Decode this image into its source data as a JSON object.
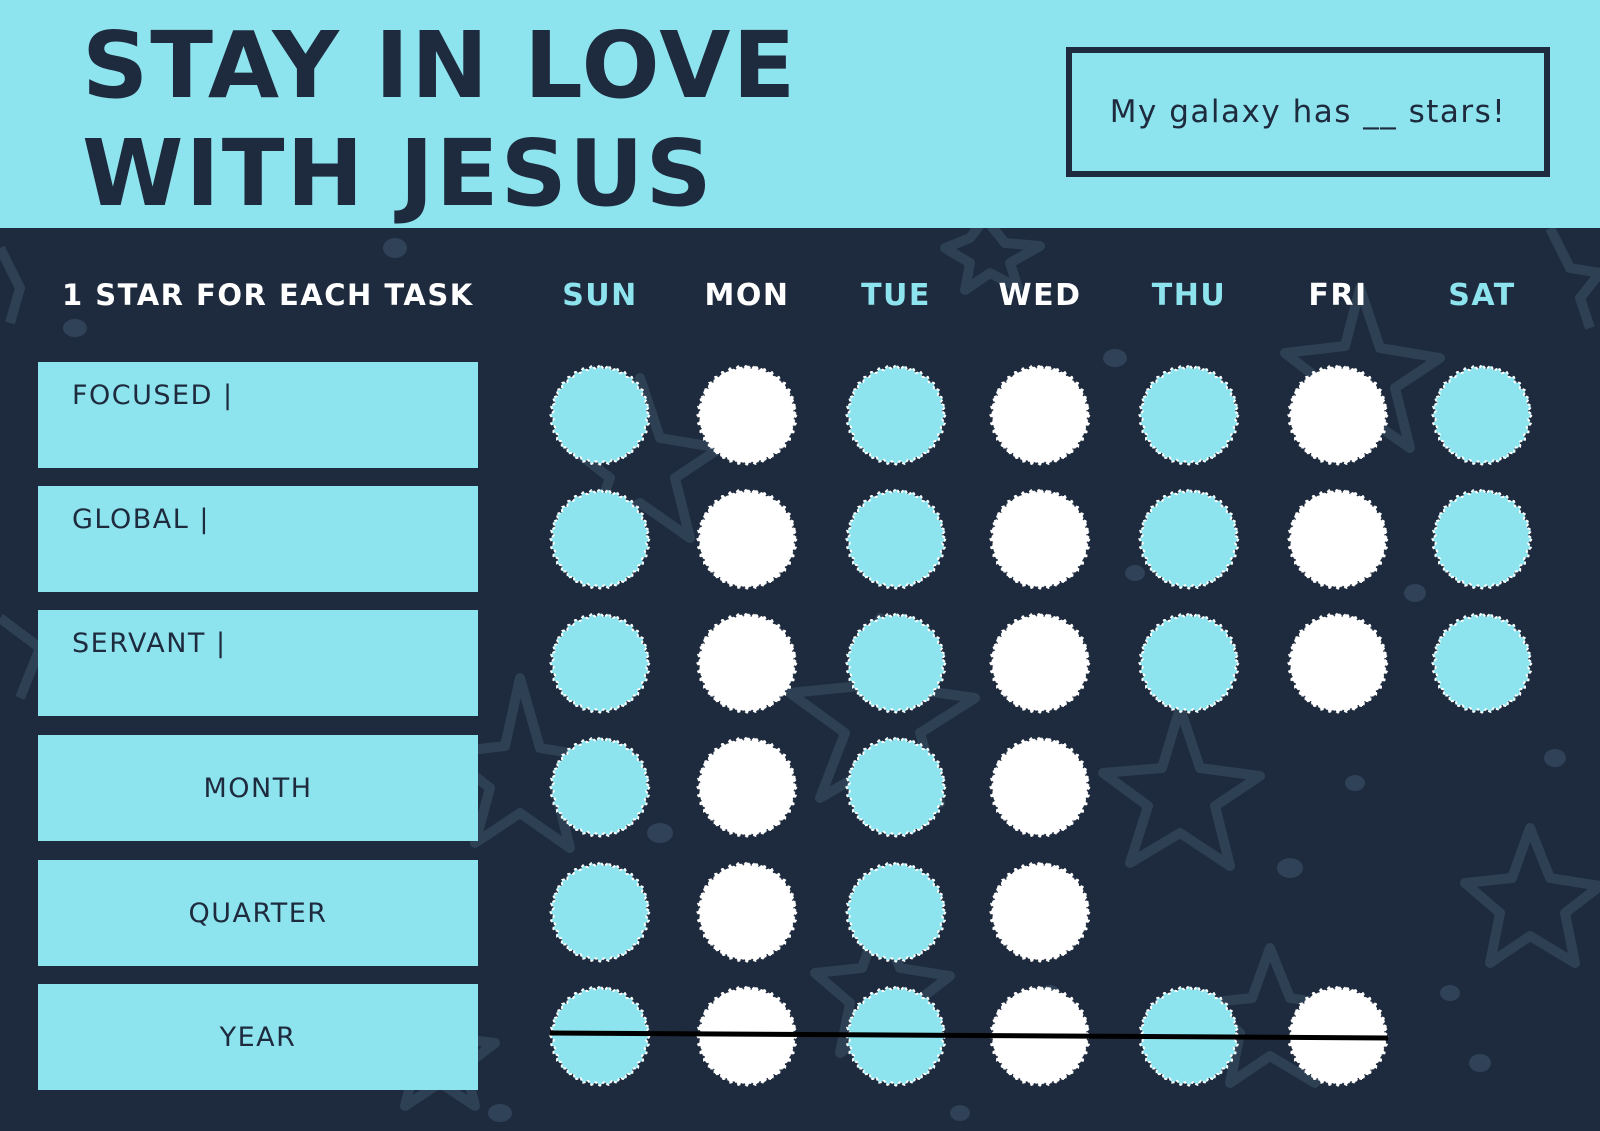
{
  "header": {
    "title_line1": "STAY IN LOVE",
    "title_line2": "WITH JESUS",
    "galaxy_text": "My galaxy has __ stars!"
  },
  "instruction": "1 STAR FOR EACH TASK",
  "days": [
    {
      "label": "SUN",
      "color": "#8ee4ee"
    },
    {
      "label": "MON",
      "color": "#ffffff"
    },
    {
      "label": "TUE",
      "color": "#8ee4ee"
    },
    {
      "label": "WED",
      "color": "#ffffff"
    },
    {
      "label": "THU",
      "color": "#8ee4ee"
    },
    {
      "label": "FRI",
      "color": "#ffffff"
    },
    {
      "label": "SAT",
      "color": "#8ee4ee"
    }
  ],
  "tasks": [
    {
      "label": "FOCUSED |"
    },
    {
      "label": "GLOBAL |"
    },
    {
      "label": "SERVANT |"
    },
    {
      "label": "MONTH"
    },
    {
      "label": "QUARTER"
    },
    {
      "label": "YEAR"
    }
  ],
  "row_circle_counts": [
    7,
    7,
    7,
    4,
    4,
    6
  ],
  "colors": {
    "dark_navy": "#1e2a3d",
    "light_cyan": "#8ee4ee",
    "white": "#ffffff",
    "decor": "#2f4257"
  }
}
